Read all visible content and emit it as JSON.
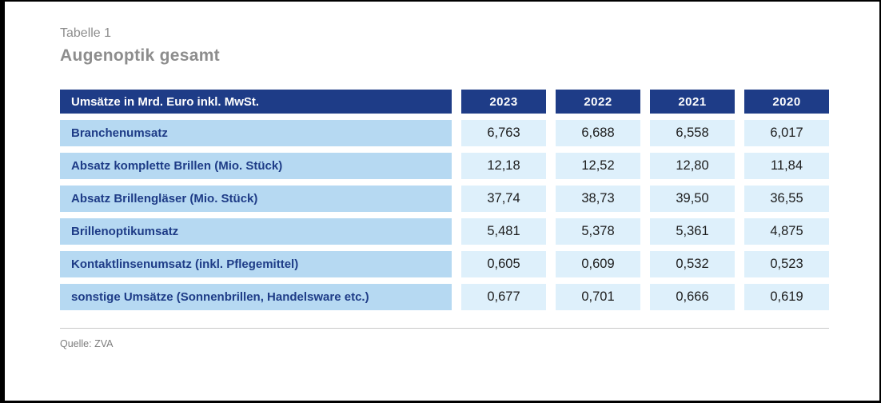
{
  "page": {
    "eyebrow": "Tabelle 1",
    "title": "Augenoptik gesamt",
    "source": "Quelle: ZVA"
  },
  "chart_data": {
    "type": "table",
    "title": "Augenoptik gesamt",
    "header_label": "Umsätze in Mrd. Euro inkl. MwSt.",
    "years": [
      "2023",
      "2022",
      "2021",
      "2020"
    ],
    "rows": [
      {
        "label": "Branchenumsatz",
        "values": [
          "6,763",
          "6,688",
          "6,558",
          "6,017"
        ]
      },
      {
        "label": "Absatz komplette Brillen (Mio. Stück)",
        "values": [
          "12,18",
          "12,52",
          "12,80",
          "11,84"
        ]
      },
      {
        "label": "Absatz Brillengläser (Mio. Stück)",
        "values": [
          "37,74",
          "38,73",
          "39,50",
          "36,55"
        ]
      },
      {
        "label": "Brillenoptikumsatz",
        "values": [
          "5,481",
          "5,378",
          "5,361",
          "4,875"
        ]
      },
      {
        "label": "Kontaktlinsenumsatz (inkl. Pflegemittel)",
        "values": [
          "0,605",
          "0,609",
          "0,532",
          "0,523"
        ]
      },
      {
        "label": "sonstige Umsätze (Sonnenbrillen, Handelsware etc.)",
        "values": [
          "0,677",
          "0,701",
          "0,666",
          "0,619"
        ]
      }
    ]
  },
  "colors": {
    "header_bg": "#1e3c87",
    "label_cell_bg": "#b6d9f2",
    "value_cell_bg": "#def0fb",
    "title_gray": "#8d8d8d",
    "source_gray": "#7c7c7c",
    "frame_border": "#000000"
  }
}
